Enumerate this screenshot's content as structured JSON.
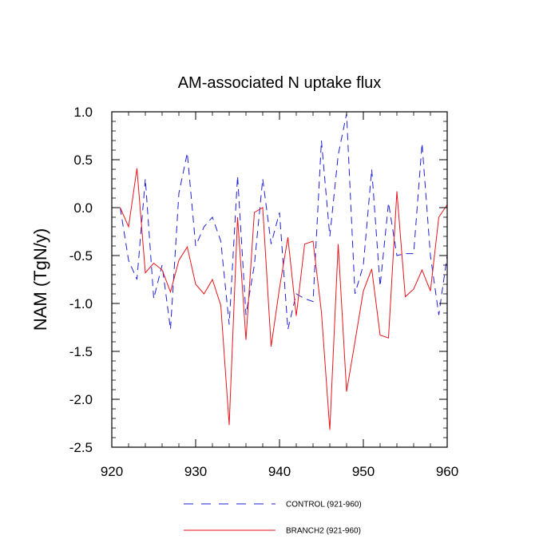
{
  "chart_data": {
    "type": "line",
    "title": "AM-associated N uptake flux",
    "xlabel": "",
    "ylabel": "NAM  (TgN/y)",
    "xlim": [
      920,
      960
    ],
    "ylim": [
      -2.5,
      1.0
    ],
    "x_ticks": [
      920,
      930,
      940,
      950,
      960
    ],
    "x_tick_labels": [
      "920",
      "930",
      "940",
      "950",
      "960"
    ],
    "y_ticks": [
      -2.5,
      -2.0,
      -1.5,
      -1.0,
      -0.5,
      0.0,
      0.5,
      1.0
    ],
    "y_tick_labels": [
      "-2.5",
      "-2.0",
      "-1.5",
      "-1.0",
      "-0.5",
      "0.0",
      "0.5",
      "1.0"
    ],
    "grid": false,
    "legend_position": "bottom",
    "x": [
      921,
      922,
      923,
      924,
      925,
      926,
      927,
      928,
      929,
      930,
      931,
      932,
      933,
      934,
      935,
      936,
      937,
      938,
      939,
      940,
      941,
      942,
      943,
      944,
      945,
      946,
      947,
      948,
      949,
      950,
      951,
      952,
      953,
      954,
      955,
      956,
      957,
      958,
      959,
      960
    ],
    "series": [
      {
        "name": "CONTROL (921-960)",
        "color": "#1f1fd6",
        "style": "dashed",
        "values": [
          0.0,
          -0.55,
          -0.75,
          0.3,
          -0.95,
          -0.6,
          -1.27,
          0.15,
          0.57,
          -0.4,
          -0.2,
          -0.1,
          -0.35,
          -1.22,
          0.33,
          -1.12,
          -0.6,
          0.3,
          -0.38,
          -0.05,
          -1.27,
          -0.9,
          -0.95,
          -0.98,
          0.7,
          -0.3,
          0.55,
          0.98,
          -0.9,
          -0.6,
          0.4,
          -0.82,
          0.05,
          -0.5,
          -0.48,
          -0.48,
          0.67,
          -0.5,
          -1.12,
          -0.5
        ]
      },
      {
        "name": "BRANCH2 (921-960)",
        "color": "#e8141c",
        "style": "solid",
        "values": [
          0.0,
          -0.2,
          0.41,
          -0.68,
          -0.58,
          -0.65,
          -0.88,
          -0.55,
          -0.41,
          -0.8,
          -0.9,
          -0.75,
          -1.02,
          -2.27,
          -0.1,
          -1.38,
          -0.05,
          0.0,
          -1.45,
          -0.84,
          -0.31,
          -1.13,
          -0.38,
          -0.35,
          -1.09,
          -2.32,
          -0.38,
          -1.92,
          -1.4,
          -0.87,
          -0.64,
          -1.33,
          -1.36,
          0.17,
          -0.93,
          -0.85,
          -0.65,
          -0.87,
          -0.1,
          0.03
        ]
      }
    ]
  }
}
